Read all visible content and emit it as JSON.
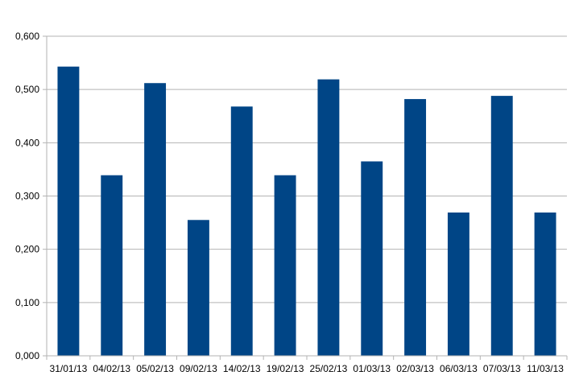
{
  "chart_data": {
    "type": "bar",
    "categories": [
      "31/01/13",
      "04/02/13",
      "05/02/13",
      "09/02/13",
      "14/02/13",
      "19/02/13",
      "25/02/13",
      "01/03/13",
      "02/03/13",
      "06/03/13",
      "07/03/13",
      "11/03/13"
    ],
    "values": [
      0.543,
      0.339,
      0.512,
      0.255,
      0.468,
      0.339,
      0.519,
      0.365,
      0.482,
      0.269,
      0.488,
      0.269
    ],
    "y_ticks": [
      "0,000",
      "0,100",
      "0,200",
      "0,300",
      "0,400",
      "0,500",
      "0,600"
    ],
    "ylim": [
      0,
      0.6
    ],
    "title": "",
    "xlabel": "",
    "ylabel": "",
    "grid": true,
    "legend": "none",
    "bar_color": "#004586",
    "grid_color": "#b3b3b3"
  }
}
